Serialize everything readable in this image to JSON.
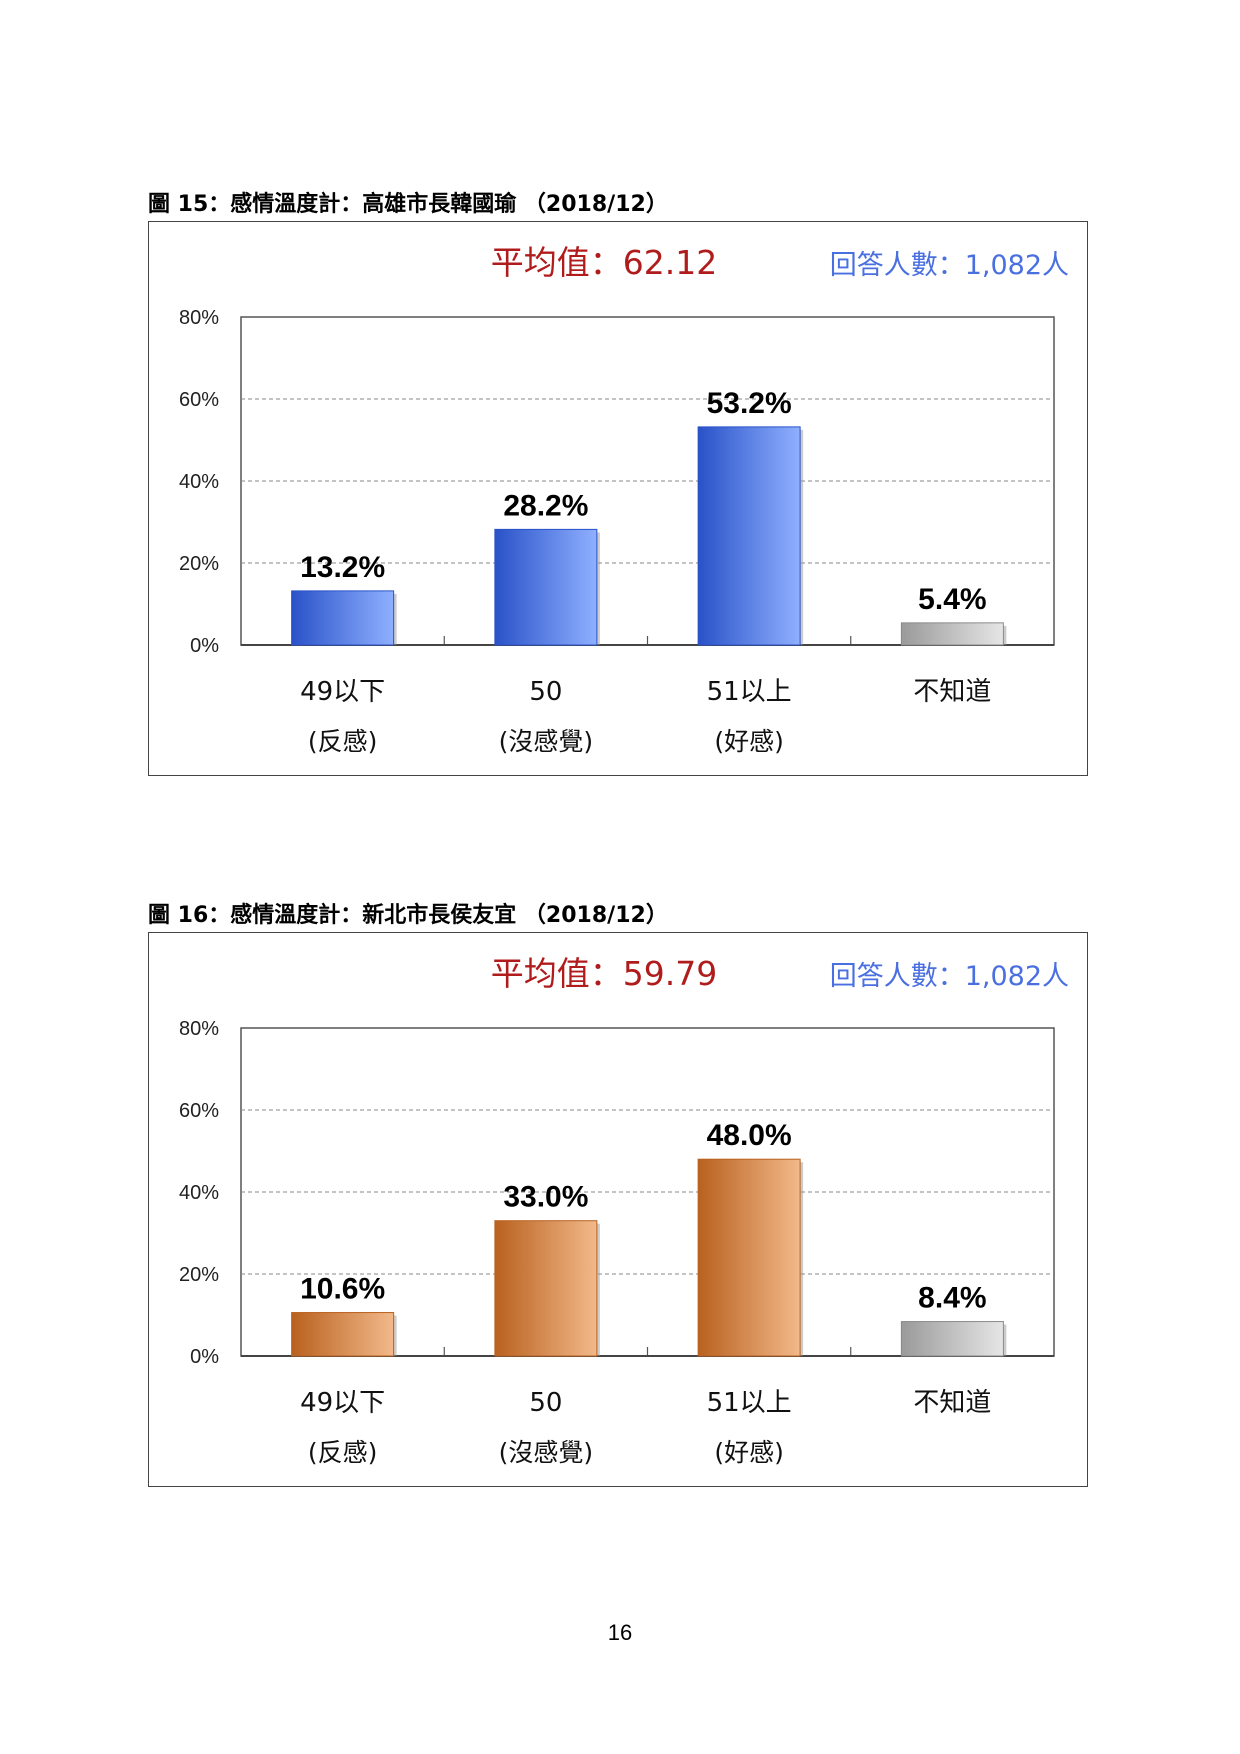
{
  "page_number": "16",
  "colors": {
    "avg_text": "#b01c1c",
    "n_text": "#4a6fe0",
    "grey_bar_light": "#e6e6e6",
    "grey_bar_dark": "#9a9a9a"
  },
  "chart_data": [
    {
      "type": "bar",
      "caption": "圖 15：感情溫度計：高雄市長韓國瑜 （2018/12）",
      "average_label": "平均值：62.12",
      "respondents_label": "回答人數：1,082人",
      "categories": [
        "49以下",
        "50",
        "51以上",
        "不知道"
      ],
      "category_sublabels": [
        "(反感)",
        "(沒感覺)",
        "(好感)",
        ""
      ],
      "values": [
        13.2,
        28.2,
        53.2,
        5.4
      ],
      "value_labels": [
        "13.2%",
        "28.2%",
        "53.2%",
        "5.4%"
      ],
      "bar_colors": [
        "#3f6ee8",
        "#3f6ee8",
        "#3f6ee8",
        "#bdbdbd"
      ],
      "bar_light": "#8fb0ff",
      "bar_dark": "#2a52c8",
      "ylim": [
        0,
        80
      ],
      "yticks": [
        "0%",
        "20%",
        "40%",
        "60%",
        "80%"
      ],
      "grid": true
    },
    {
      "type": "bar",
      "caption": "圖 16：感情溫度計：新北市長侯友宜 （2018/12）",
      "average_label": "平均值：59.79",
      "respondents_label": "回答人數：1,082人",
      "categories": [
        "49以下",
        "50",
        "51以上",
        "不知道"
      ],
      "category_sublabels": [
        "(反感)",
        "(沒感覺)",
        "(好感)",
        ""
      ],
      "values": [
        10.6,
        33.0,
        48.0,
        8.4
      ],
      "value_labels": [
        "10.6%",
        "33.0%",
        "48.0%",
        "8.4%"
      ],
      "bar_colors": [
        "#d0823f",
        "#d0823f",
        "#d0823f",
        "#bdbdbd"
      ],
      "bar_light": "#f2b98a",
      "bar_dark": "#b9611f",
      "ylim": [
        0,
        80
      ],
      "yticks": [
        "0%",
        "20%",
        "40%",
        "60%",
        "80%"
      ],
      "grid": true
    }
  ]
}
